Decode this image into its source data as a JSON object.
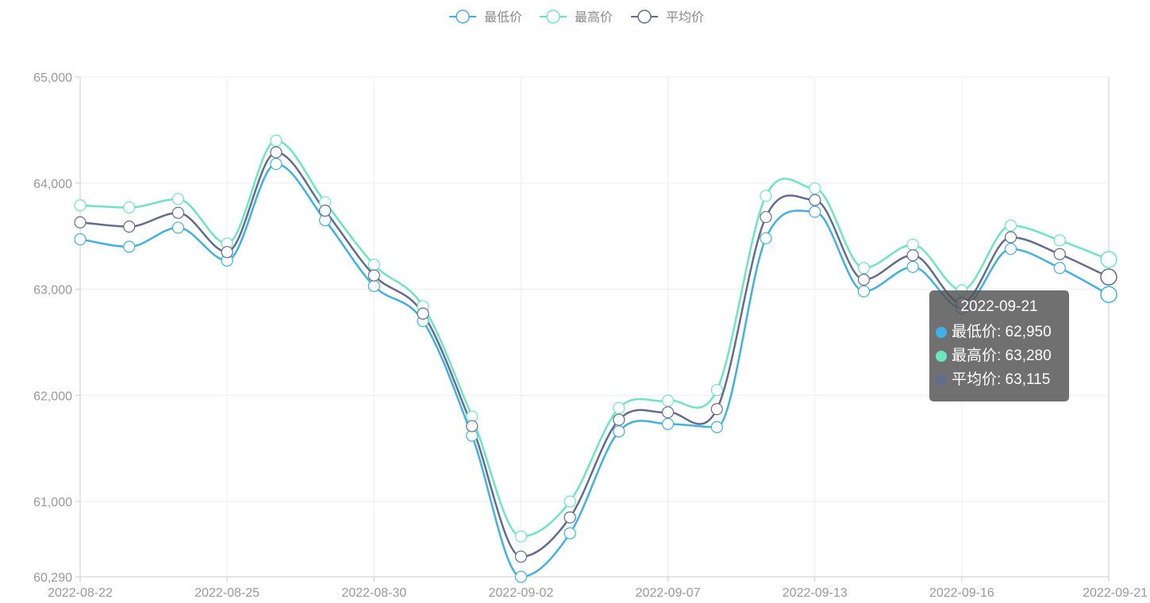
{
  "chart_data": {
    "type": "line",
    "smooth": true,
    "x": [
      "2022-08-22",
      "2022-08-23",
      "2022-08-24",
      "2022-08-25",
      "2022-08-26",
      "2022-08-29",
      "2022-08-30",
      "2022-08-31",
      "2022-09-01",
      "2022-09-02",
      "2022-09-05",
      "2022-09-06",
      "2022-09-07",
      "2022-09-08",
      "2022-09-09",
      "2022-09-13",
      "2022-09-14",
      "2022-09-15",
      "2022-09-16",
      "2022-09-19",
      "2022-09-20",
      "2022-09-21"
    ],
    "x_tick_labels": [
      {
        "index": 0,
        "label": "2022-08-22"
      },
      {
        "index": 3,
        "label": "2022-08-25"
      },
      {
        "index": 6,
        "label": "2022-08-30"
      },
      {
        "index": 9,
        "label": "2022-09-02"
      },
      {
        "index": 12,
        "label": "2022-09-07"
      },
      {
        "index": 15,
        "label": "2022-09-13"
      },
      {
        "index": 18,
        "label": "2022-09-16"
      },
      {
        "index": 21,
        "label": "2022-09-21"
      }
    ],
    "ylim": [
      60290,
      65000
    ],
    "y_tick_labels": [
      "65,000",
      "64,000",
      "63,000",
      "62,000",
      "61,000",
      "60,290"
    ],
    "y_tick_values": [
      65000,
      64000,
      63000,
      62000,
      61000,
      60290
    ],
    "grid": true,
    "legend_position": "top-center",
    "series": [
      {
        "name": "最低价",
        "color": "#3fb1e3",
        "values": [
          63470,
          63400,
          63580,
          63270,
          64180,
          63650,
          63030,
          62700,
          61620,
          60290,
          60700,
          61660,
          61730,
          61700,
          63480,
          63730,
          62980,
          63210,
          62820,
          63380,
          63200,
          62950
        ]
      },
      {
        "name": "最高价",
        "color": "#6be6c1",
        "values": [
          63790,
          63770,
          63850,
          63430,
          64400,
          63820,
          63230,
          62840,
          61800,
          60670,
          61000,
          61880,
          61950,
          62050,
          63880,
          63950,
          63200,
          63420,
          62990,
          63600,
          63460,
          63280
        ]
      },
      {
        "name": "平均价",
        "color": "#626c91",
        "values": [
          63630,
          63590,
          63720,
          63350,
          64290,
          63740,
          63130,
          62770,
          61710,
          60480,
          60850,
          61770,
          61840,
          61870,
          63680,
          63840,
          63090,
          63320,
          62870,
          63490,
          63330,
          63115
        ]
      }
    ]
  },
  "tooltip": {
    "title": "2022-09-21",
    "rows": [
      {
        "text": "最低价: 62,950",
        "color": "#3fb1e3"
      },
      {
        "text": "最高价: 63,280",
        "color": "#6be6c1"
      },
      {
        "text": "平均价: 63,115",
        "color": "#626c91"
      }
    ]
  }
}
